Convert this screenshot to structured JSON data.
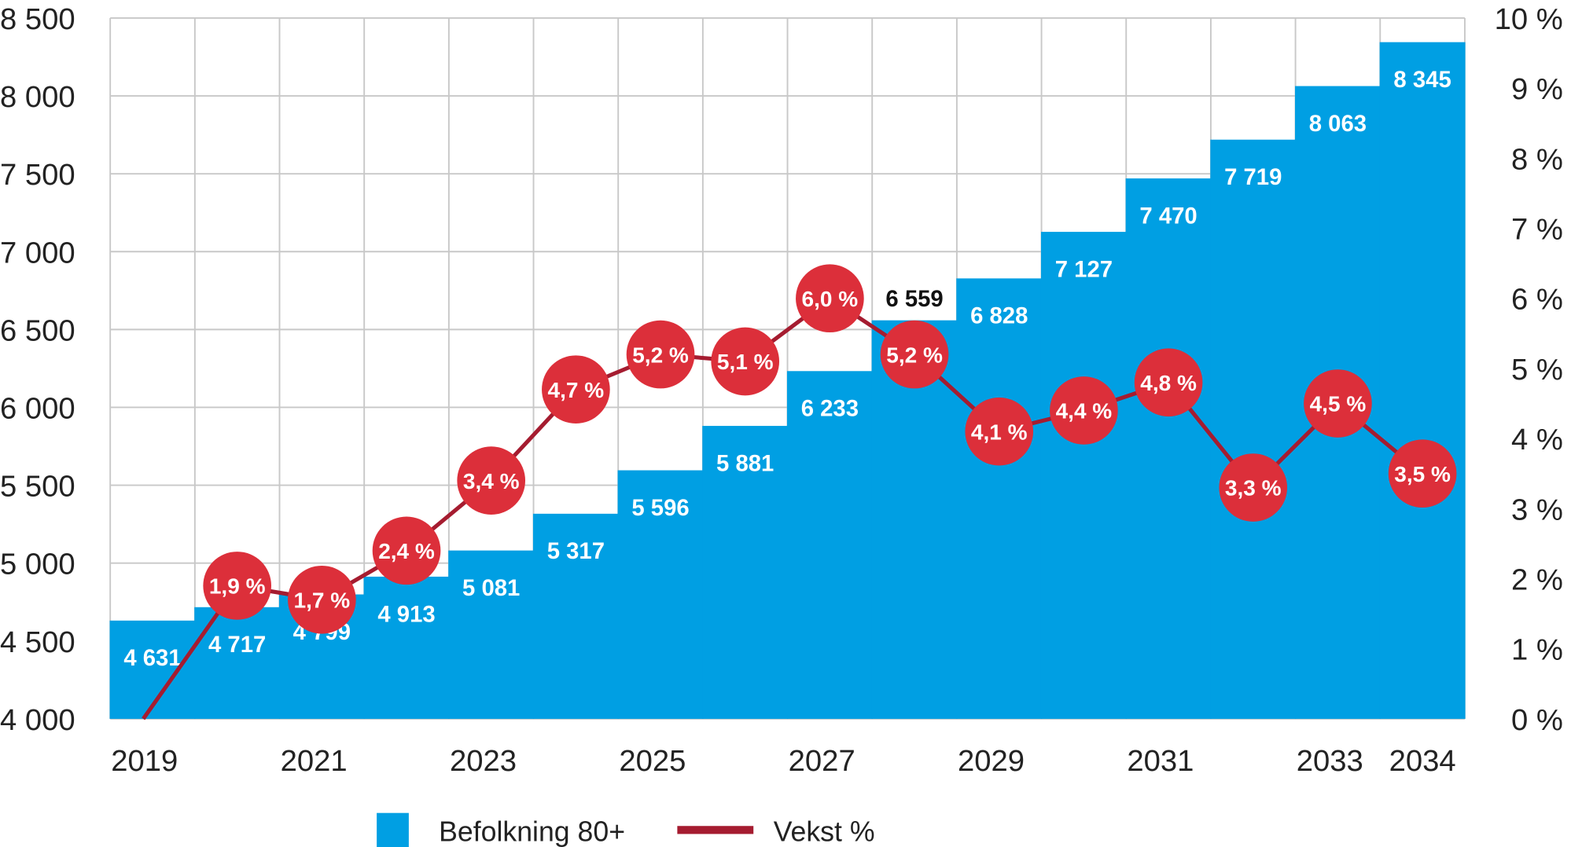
{
  "chart_data": {
    "type": "bar+line",
    "categories": [
      "2019",
      "2020",
      "2021",
      "2022",
      "2023",
      "2024",
      "2025",
      "2026",
      "2027",
      "2028",
      "2029",
      "2030",
      "2031",
      "2032",
      "2033",
      "2034"
    ],
    "x_tick_labels": [
      "2019",
      "",
      "2021",
      "",
      "2023",
      "",
      "2025",
      "",
      "2027",
      "",
      "2029",
      "",
      "2031",
      "",
      "2033",
      "2034"
    ],
    "series": [
      {
        "name": "Befolkning 80+",
        "type": "bar",
        "axis": "left",
        "color": "#009fe3",
        "values": [
          4631,
          4717,
          4799,
          4913,
          5081,
          5317,
          5596,
          5881,
          6233,
          6559,
          6828,
          7127,
          7470,
          7719,
          8063,
          8345
        ],
        "labels": [
          "4 631",
          "4 717",
          "4 799",
          "4 913",
          "5 081",
          "5 317",
          "5 596",
          "5 881",
          "6 233",
          "6 559",
          "6 828",
          "7 127",
          "7 470",
          "7 719",
          "8 063",
          "8 345"
        ]
      },
      {
        "name": "Vekst %",
        "type": "line",
        "axis": "right",
        "color": "#a51c30",
        "marker_color": "#dc2f3a",
        "values": [
          0,
          1.9,
          1.7,
          2.4,
          3.4,
          4.7,
          5.2,
          5.1,
          6.0,
          5.2,
          4.1,
          4.4,
          4.8,
          3.3,
          4.5,
          3.5
        ],
        "labels": [
          "",
          "1,9 %",
          "1,7 %",
          "2,4 %",
          "3,4 %",
          "4,7 %",
          "5,2 %",
          "5,1 %",
          "6,0 %",
          "5,2 %",
          "4,1 %",
          "4,4 %",
          "4,8 %",
          "3,3 %",
          "4,5 %",
          "3,5 %"
        ]
      }
    ],
    "y_left": {
      "range": [
        4000,
        8500
      ],
      "ticks": [
        "4 000",
        "4 500",
        "5 000",
        "5 500",
        "6 000",
        "6 500",
        "7 000",
        "7 500",
        "8 000",
        "8 500"
      ]
    },
    "y_right": {
      "range": [
        0,
        10
      ],
      "ticks": [
        "0 %",
        "1 %",
        "2 %",
        "3 %",
        "4 %",
        "5 %",
        "6 %",
        "7 %",
        "8 %",
        "9 %",
        "10 %"
      ]
    },
    "grid": true,
    "legend_position": "bottom"
  }
}
